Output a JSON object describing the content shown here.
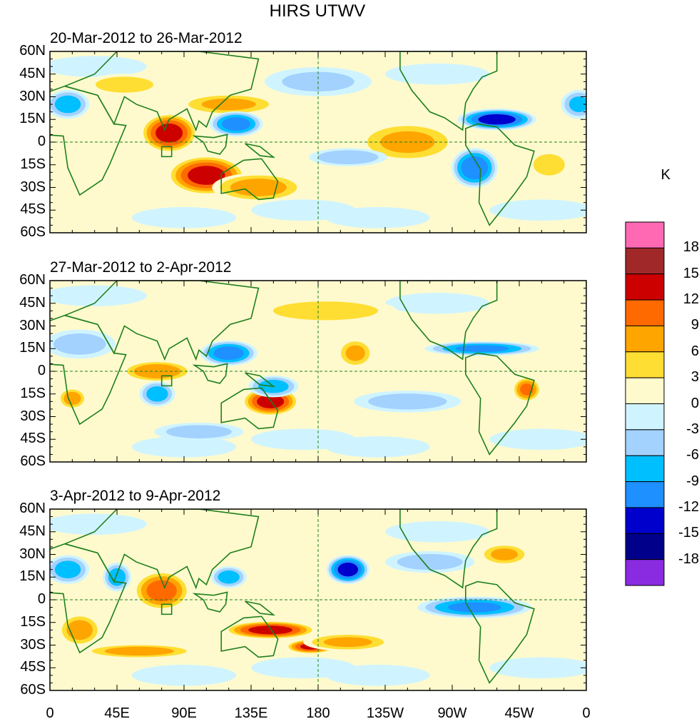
{
  "title": "HIRS UTWV",
  "chart_data": {
    "type": "heatmap",
    "title": "HIRS UTWV",
    "colorbar": {
      "unit": "K",
      "levels": [
        "18",
        "15",
        "12",
        "9",
        "6",
        "3",
        "0",
        "-3",
        "-6",
        "-9",
        "-12",
        "-15",
        "-18"
      ],
      "colors": [
        "#FF69B4",
        "#A02828",
        "#CD0000",
        "#FF6A00",
        "#FFA500",
        "#FFDE33",
        "#FFFACD",
        "#D0F4FF",
        "#A3D2FF",
        "#00BFFF",
        "#1E90FF",
        "#0000CD",
        "#00008B",
        "#8A2BE2"
      ]
    },
    "x_ticks": [
      "0",
      "45E",
      "90E",
      "135E",
      "180",
      "135W",
      "90W",
      "45W",
      "0"
    ],
    "y_ticks": [
      "60N",
      "45N",
      "30N",
      "15N",
      "0",
      "15S",
      "30S",
      "45S",
      "60S"
    ],
    "lon_range": [
      0,
      360
    ],
    "lat_range": [
      -60,
      60
    ],
    "panels": [
      {
        "label": "20-Mar-2012 to 26-Mar-2012",
        "features": [
          {
            "lon": 80,
            "lat": 6,
            "value": 14,
            "dlon": 16,
            "dlat": 11
          },
          {
            "lon": 105,
            "lat": -22,
            "value": 14,
            "dlon": 22,
            "dlat": 11
          },
          {
            "lon": 140,
            "lat": -30,
            "value": 8,
            "dlon": 26,
            "dlat": 8
          },
          {
            "lon": 120,
            "lat": 25,
            "value": 7,
            "dlon": 28,
            "dlat": 6
          },
          {
            "lon": 125,
            "lat": 12,
            "value": -11,
            "dlon": 15,
            "dlat": 7
          },
          {
            "lon": 300,
            "lat": 15,
            "value": -14,
            "dlon": 22,
            "dlat": 6
          },
          {
            "lon": 285,
            "lat": -17,
            "value": -12,
            "dlon": 13,
            "dlat": 11
          },
          {
            "lon": 240,
            "lat": 0,
            "value": 7,
            "dlon": 28,
            "dlat": 11
          },
          {
            "lon": 12,
            "lat": 25,
            "value": -8,
            "dlon": 12,
            "dlat": 8
          },
          {
            "lon": 50,
            "lat": 38,
            "value": 5,
            "dlon": 22,
            "dlat": 6
          },
          {
            "lon": 200,
            "lat": -10,
            "value": -6,
            "dlon": 22,
            "dlat": 5
          },
          {
            "lon": 335,
            "lat": -15,
            "value": 5,
            "dlon": 12,
            "dlat": 8
          },
          {
            "lon": 355,
            "lat": 25,
            "value": -7,
            "dlon": 10,
            "dlat": 8
          },
          {
            "lon": 180,
            "lat": 40,
            "value": -4,
            "dlon": 30,
            "dlat": 8
          }
        ]
      },
      {
        "label": "27-Mar-2012 to 2-Apr-2012",
        "features": [
          {
            "lon": 72,
            "lat": 0,
            "value": 9,
            "dlon": 20,
            "dlat": 6
          },
          {
            "lon": 148,
            "lat": -20,
            "value": 14,
            "dlon": 16,
            "dlat": 8
          },
          {
            "lon": 120,
            "lat": 12,
            "value": -11,
            "dlon": 16,
            "dlat": 7
          },
          {
            "lon": 150,
            "lat": -10,
            "value": -8,
            "dlon": 14,
            "dlat": 6
          },
          {
            "lon": 290,
            "lat": 15,
            "value": -10,
            "dlon": 32,
            "dlat": 4
          },
          {
            "lon": 320,
            "lat": -12,
            "value": 10,
            "dlon": 8,
            "dlat": 7
          },
          {
            "lon": 205,
            "lat": 12,
            "value": 7,
            "dlon": 10,
            "dlat": 8
          },
          {
            "lon": 185,
            "lat": 40,
            "value": 5,
            "dlon": 40,
            "dlat": 7
          },
          {
            "lon": 72,
            "lat": -15,
            "value": -8,
            "dlon": 10,
            "dlat": 7
          },
          {
            "lon": 15,
            "lat": -18,
            "value": 8,
            "dlon": 8,
            "dlat": 6
          },
          {
            "lon": 20,
            "lat": 18,
            "value": -5,
            "dlon": 20,
            "dlat": 8
          },
          {
            "lon": 240,
            "lat": -20,
            "value": -5,
            "dlon": 30,
            "dlat": 6
          },
          {
            "lon": 100,
            "lat": -40,
            "value": -5,
            "dlon": 25,
            "dlat": 5
          }
        ]
      },
      {
        "label": "3-Apr-2012 to 9-Apr-2012",
        "features": [
          {
            "lon": 75,
            "lat": 6,
            "value": 11,
            "dlon": 16,
            "dlat": 11
          },
          {
            "lon": 148,
            "lat": -20,
            "value": 14,
            "dlon": 26,
            "dlat": 5
          },
          {
            "lon": 175,
            "lat": -31,
            "value": 13,
            "dlon": 14,
            "dlat": 4
          },
          {
            "lon": 20,
            "lat": -20,
            "value": 8,
            "dlon": 12,
            "dlat": 9
          },
          {
            "lon": 60,
            "lat": -34,
            "value": 8,
            "dlon": 32,
            "dlat": 4
          },
          {
            "lon": 200,
            "lat": 20,
            "value": -14,
            "dlon": 12,
            "dlat": 8
          },
          {
            "lon": 285,
            "lat": -5,
            "value": -10,
            "dlon": 32,
            "dlat": 6
          },
          {
            "lon": 12,
            "lat": 20,
            "value": -8,
            "dlon": 12,
            "dlat": 8
          },
          {
            "lon": 305,
            "lat": 30,
            "value": 7,
            "dlon": 14,
            "dlat": 6
          },
          {
            "lon": 45,
            "lat": 15,
            "value": -8,
            "dlon": 8,
            "dlat": 8
          },
          {
            "lon": 200,
            "lat": -28,
            "value": 7,
            "dlon": 25,
            "dlat": 5
          },
          {
            "lon": 120,
            "lat": 15,
            "value": -8,
            "dlon": 10,
            "dlat": 6
          },
          {
            "lon": 255,
            "lat": 25,
            "value": -5,
            "dlon": 25,
            "dlat": 6
          }
        ]
      }
    ]
  }
}
